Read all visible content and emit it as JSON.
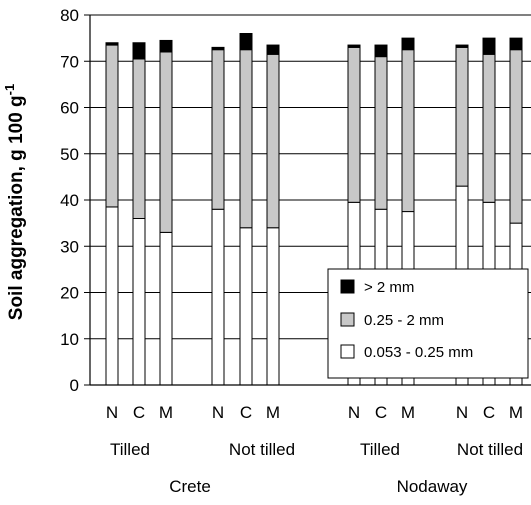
{
  "chart_data": {
    "type": "bar",
    "stacked": true,
    "ylabel": "Soil aggregation, g 100 g",
    "ylabel_superscript": "-1",
    "ylim": [
      0,
      80
    ],
    "yticks": [
      0,
      10,
      20,
      30,
      40,
      50,
      60,
      70,
      80
    ],
    "grid": true,
    "legend_position": "bottom-right",
    "categories": [
      {
        "label": "N",
        "treatment": "Tilled",
        "site": "Crete"
      },
      {
        "label": "C",
        "treatment": "Tilled",
        "site": "Crete"
      },
      {
        "label": "M",
        "treatment": "Tilled",
        "site": "Crete"
      },
      {
        "label": "N",
        "treatment": "Not tilled",
        "site": "Crete"
      },
      {
        "label": "C",
        "treatment": "Not tilled",
        "site": "Crete"
      },
      {
        "label": "M",
        "treatment": "Not tilled",
        "site": "Crete"
      },
      {
        "label": "N",
        "treatment": "Tilled",
        "site": "Nodaway"
      },
      {
        "label": "C",
        "treatment": "Tilled",
        "site": "Nodaway"
      },
      {
        "label": "M",
        "treatment": "Tilled",
        "site": "Nodaway"
      },
      {
        "label": "N",
        "treatment": "Not tilled",
        "site": "Nodaway"
      },
      {
        "label": "C",
        "treatment": "Not tilled",
        "site": "Nodaway"
      },
      {
        "label": "M",
        "treatment": "Not tilled",
        "site": "Nodaway"
      }
    ],
    "treatment_labels": [
      "Tilled",
      "Not tilled",
      "Tilled",
      "Not tilled"
    ],
    "site_labels": [
      "Crete",
      "Nodaway"
    ],
    "series": [
      {
        "name": "0.053 - 0.25 mm",
        "color": "#ffffff",
        "values": [
          38.5,
          36.0,
          33.0,
          38.0,
          34.0,
          34.0,
          39.5,
          38.0,
          37.5,
          43.0,
          39.5,
          35.0
        ]
      },
      {
        "name": "0.25 - 2 mm",
        "color": "#c8c8c8",
        "values": [
          35.0,
          34.5,
          39.0,
          34.5,
          38.5,
          37.5,
          33.5,
          33.0,
          35.0,
          30.0,
          32.0,
          37.5
        ]
      },
      {
        "name": "> 2 mm",
        "color": "#000000",
        "values": [
          0.5,
          3.5,
          2.5,
          0.5,
          3.5,
          2.0,
          0.5,
          2.5,
          2.5,
          0.5,
          3.5,
          2.5
        ]
      }
    ],
    "legend_order": [
      "> 2 mm",
      "0.25 - 2 mm",
      "0.053 - 0.25 mm"
    ]
  }
}
